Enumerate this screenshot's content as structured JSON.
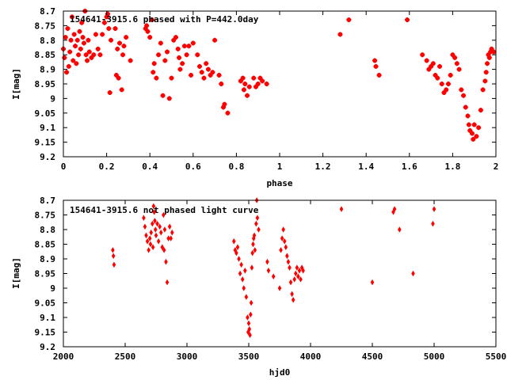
{
  "chart_data": [
    {
      "type": "scatter",
      "title": "154641-3915.6 phased with P=442.0day",
      "xlabel": "phase",
      "ylabel": "I[mag]",
      "xlim": [
        0,
        2
      ],
      "ylim": [
        8.7,
        9.2
      ],
      "y_inverted": true,
      "x_ticks": [
        "0",
        "0.2",
        "0.4",
        "0.6",
        "0.8",
        "1",
        "1.2",
        "1.4",
        "1.6",
        "1.8",
        "2"
      ],
      "y_ticks": [
        "8.7",
        "8.75",
        "8.8",
        "8.85",
        "8.9",
        "8.95",
        "9",
        "9.05",
        "9.1",
        "9.15",
        "9.2"
      ],
      "grid": false,
      "marker_color": "#ff0000",
      "points": [
        [
          0.0,
          8.83
        ],
        [
          0.005,
          8.86
        ],
        [
          0.01,
          8.79
        ],
        [
          0.015,
          8.91
        ],
        [
          0.02,
          8.76
        ],
        [
          0.025,
          8.89
        ],
        [
          0.03,
          8.84
        ],
        [
          0.035,
          8.8
        ],
        [
          0.04,
          8.72
        ],
        [
          0.045,
          8.87
        ],
        [
          0.05,
          8.78
        ],
        [
          0.055,
          8.82
        ],
        [
          0.06,
          8.88
        ],
        [
          0.065,
          8.8
        ],
        [
          0.07,
          8.85
        ],
        [
          0.075,
          8.77
        ],
        [
          0.08,
          8.83
        ],
        [
          0.085,
          8.74
        ],
        [
          0.09,
          8.79
        ],
        [
          0.095,
          8.81
        ],
        [
          0.1,
          8.7
        ],
        [
          0.105,
          8.85
        ],
        [
          0.11,
          8.87
        ],
        [
          0.115,
          8.8
        ],
        [
          0.12,
          8.84
        ],
        [
          0.13,
          8.86
        ],
        [
          0.14,
          8.85
        ],
        [
          0.15,
          8.78
        ],
        [
          0.16,
          8.83
        ],
        [
          0.17,
          8.85
        ],
        [
          0.18,
          8.78
        ],
        [
          0.19,
          8.74
        ],
        [
          0.2,
          8.72
        ],
        [
          0.205,
          8.71
        ],
        [
          0.21,
          8.76
        ],
        [
          0.215,
          8.98
        ],
        [
          0.22,
          8.8
        ],
        [
          0.24,
          8.76
        ],
        [
          0.245,
          8.92
        ],
        [
          0.25,
          8.83
        ],
        [
          0.255,
          8.93
        ],
        [
          0.26,
          8.81
        ],
        [
          0.27,
          8.97
        ],
        [
          0.275,
          8.85
        ],
        [
          0.28,
          8.82
        ],
        [
          0.29,
          8.79
        ],
        [
          0.31,
          8.87
        ],
        [
          0.38,
          8.76
        ],
        [
          0.385,
          8.75
        ],
        [
          0.39,
          8.77
        ],
        [
          0.4,
          8.79
        ],
        [
          0.41,
          8.73
        ],
        [
          0.415,
          8.91
        ],
        [
          0.42,
          8.88
        ],
        [
          0.43,
          8.93
        ],
        [
          0.44,
          8.85
        ],
        [
          0.45,
          8.81
        ],
        [
          0.46,
          8.99
        ],
        [
          0.47,
          8.87
        ],
        [
          0.48,
          8.84
        ],
        [
          0.49,
          9.0
        ],
        [
          0.5,
          8.93
        ],
        [
          0.51,
          8.8
        ],
        [
          0.52,
          8.79
        ],
        [
          0.53,
          8.83
        ],
        [
          0.535,
          8.86
        ],
        [
          0.54,
          8.9
        ],
        [
          0.55,
          8.88
        ],
        [
          0.56,
          8.82
        ],
        [
          0.57,
          8.85
        ],
        [
          0.58,
          8.82
        ],
        [
          0.59,
          8.92
        ],
        [
          0.6,
          8.81
        ],
        [
          0.62,
          8.85
        ],
        [
          0.63,
          8.89
        ],
        [
          0.64,
          8.91
        ],
        [
          0.65,
          8.93
        ],
        [
          0.66,
          8.88
        ],
        [
          0.67,
          8.9
        ],
        [
          0.68,
          8.92
        ],
        [
          0.69,
          8.91
        ],
        [
          0.7,
          8.8
        ],
        [
          0.72,
          8.92
        ],
        [
          0.73,
          8.95
        ],
        [
          0.74,
          9.03
        ],
        [
          0.745,
          9.02
        ],
        [
          0.76,
          9.05
        ],
        [
          0.82,
          8.94
        ],
        [
          0.83,
          8.93
        ],
        [
          0.835,
          8.97
        ],
        [
          0.84,
          8.95
        ],
        [
          0.85,
          8.99
        ],
        [
          0.86,
          8.96
        ],
        [
          0.88,
          8.93
        ],
        [
          0.89,
          8.96
        ],
        [
          0.9,
          8.95
        ],
        [
          0.91,
          8.93
        ],
        [
          0.92,
          8.94
        ],
        [
          0.94,
          8.95
        ],
        [
          1.28,
          8.78
        ],
        [
          1.32,
          8.73
        ],
        [
          1.44,
          8.87
        ],
        [
          1.445,
          8.89
        ],
        [
          1.46,
          8.92
        ],
        [
          1.59,
          8.73
        ],
        [
          1.66,
          8.85
        ],
        [
          1.68,
          8.87
        ],
        [
          1.69,
          8.9
        ],
        [
          1.7,
          8.89
        ],
        [
          1.71,
          8.88
        ],
        [
          1.72,
          8.92
        ],
        [
          1.73,
          8.93
        ],
        [
          1.74,
          8.89
        ],
        [
          1.75,
          8.95
        ],
        [
          1.76,
          8.98
        ],
        [
          1.77,
          8.97
        ],
        [
          1.78,
          8.95
        ],
        [
          1.79,
          8.92
        ],
        [
          1.8,
          8.85
        ],
        [
          1.81,
          8.86
        ],
        [
          1.82,
          8.88
        ],
        [
          1.83,
          8.9
        ],
        [
          1.84,
          8.97
        ],
        [
          1.85,
          8.99
        ],
        [
          1.86,
          9.03
        ],
        [
          1.87,
          9.06
        ],
        [
          1.875,
          9.09
        ],
        [
          1.88,
          9.11
        ],
        [
          1.89,
          9.12
        ],
        [
          1.895,
          9.14
        ],
        [
          1.9,
          9.09
        ],
        [
          1.91,
          9.13
        ],
        [
          1.92,
          9.1
        ],
        [
          1.93,
          9.04
        ],
        [
          1.94,
          8.97
        ],
        [
          1.95,
          8.94
        ],
        [
          1.955,
          8.91
        ],
        [
          1.96,
          8.88
        ],
        [
          1.965,
          8.85
        ],
        [
          1.97,
          8.86
        ],
        [
          1.975,
          8.84
        ],
        [
          1.98,
          8.83
        ],
        [
          1.99,
          8.84
        ]
      ]
    },
    {
      "type": "scatter",
      "title": "154641-3915.6 not phased light curve",
      "xlabel": "hjd0",
      "ylabel": "I[mag]",
      "xlim": [
        2000,
        5500
      ],
      "ylim": [
        8.7,
        9.2
      ],
      "y_inverted": true,
      "x_ticks": [
        "2000",
        "2500",
        "3000",
        "3500",
        "4000",
        "4500",
        "5000",
        "5500"
      ],
      "y_ticks": [
        "8.7",
        "8.75",
        "8.8",
        "8.85",
        "8.9",
        "8.95",
        "9",
        "9.05",
        "9.1",
        "9.15",
        "9.2"
      ],
      "grid": false,
      "marker_color": "#ff0000",
      "points": [
        [
          2400,
          8.87
        ],
        [
          2405,
          8.89
        ],
        [
          2410,
          8.92
        ],
        [
          2650,
          8.76
        ],
        [
          2660,
          8.79
        ],
        [
          2670,
          8.82
        ],
        [
          2680,
          8.84
        ],
        [
          2690,
          8.87
        ],
        [
          2700,
          8.83
        ],
        [
          2705,
          8.85
        ],
        [
          2710,
          8.81
        ],
        [
          2720,
          8.78
        ],
        [
          2725,
          8.86
        ],
        [
          2730,
          8.72
        ],
        [
          2735,
          8.74
        ],
        [
          2740,
          8.77
        ],
        [
          2745,
          8.8
        ],
        [
          2750,
          8.82
        ],
        [
          2760,
          8.78
        ],
        [
          2770,
          8.84
        ],
        [
          2780,
          8.79
        ],
        [
          2790,
          8.81
        ],
        [
          2800,
          8.86
        ],
        [
          2810,
          8.75
        ],
        [
          2815,
          8.87
        ],
        [
          2820,
          8.8
        ],
        [
          2830,
          8.91
        ],
        [
          2840,
          8.98
        ],
        [
          2850,
          8.83
        ],
        [
          2860,
          8.79
        ],
        [
          2870,
          8.83
        ],
        [
          2880,
          8.81
        ],
        [
          3380,
          8.84
        ],
        [
          3390,
          8.87
        ],
        [
          3400,
          8.88
        ],
        [
          3410,
          8.86
        ],
        [
          3420,
          8.9
        ],
        [
          3430,
          8.95
        ],
        [
          3440,
          8.92
        ],
        [
          3450,
          8.97
        ],
        [
          3460,
          9.0
        ],
        [
          3470,
          8.94
        ],
        [
          3480,
          9.03
        ],
        [
          3490,
          9.1
        ],
        [
          3495,
          9.15
        ],
        [
          3500,
          9.12
        ],
        [
          3505,
          9.14
        ],
        [
          3510,
          9.16
        ],
        [
          3515,
          9.09
        ],
        [
          3520,
          9.05
        ],
        [
          3525,
          8.93
        ],
        [
          3530,
          8.88
        ],
        [
          3535,
          8.85
        ],
        [
          3540,
          8.83
        ],
        [
          3545,
          8.82
        ],
        [
          3550,
          8.87
        ],
        [
          3560,
          8.78
        ],
        [
          3565,
          8.7
        ],
        [
          3570,
          8.76
        ],
        [
          3580,
          8.8
        ],
        [
          3650,
          8.91
        ],
        [
          3660,
          8.94
        ],
        [
          3700,
          8.96
        ],
        [
          3750,
          9.0
        ],
        [
          3760,
          8.87
        ],
        [
          3770,
          8.83
        ],
        [
          3780,
          8.8
        ],
        [
          3790,
          8.84
        ],
        [
          3800,
          8.86
        ],
        [
          3810,
          8.89
        ],
        [
          3820,
          8.91
        ],
        [
          3830,
          8.93
        ],
        [
          3840,
          8.98
        ],
        [
          3850,
          9.02
        ],
        [
          3860,
          9.04
        ],
        [
          3870,
          8.97
        ],
        [
          3880,
          8.95
        ],
        [
          3890,
          8.93
        ],
        [
          3900,
          8.96
        ],
        [
          3910,
          8.94
        ],
        [
          3920,
          8.97
        ],
        [
          3930,
          8.93
        ],
        [
          3940,
          8.94
        ],
        [
          4250,
          8.73
        ],
        [
          4500,
          8.98
        ],
        [
          4670,
          8.74
        ],
        [
          4680,
          8.73
        ],
        [
          4720,
          8.8
        ],
        [
          4830,
          8.95
        ],
        [
          4990,
          8.78
        ],
        [
          5000,
          8.73
        ]
      ]
    }
  ]
}
